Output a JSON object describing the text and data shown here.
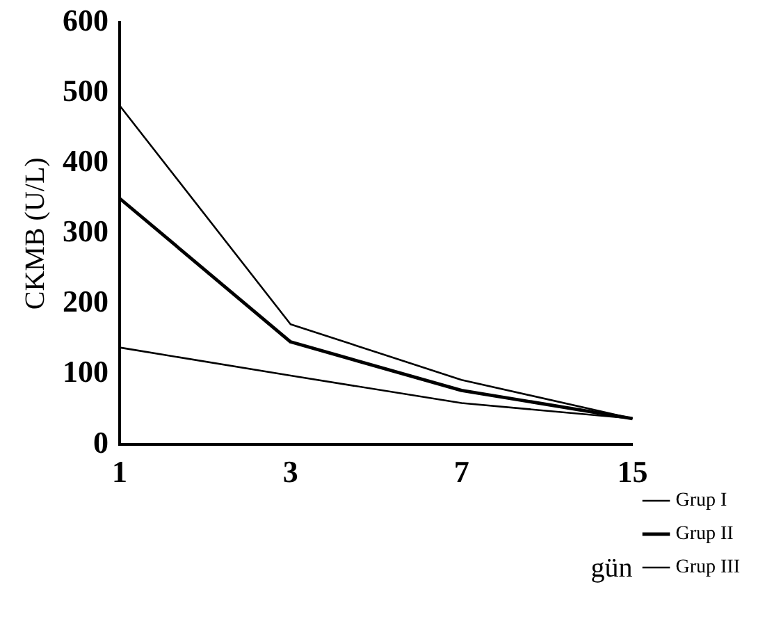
{
  "chart_data": {
    "type": "line",
    "ylabel": "CKMB (U/L)",
    "xlabel": "gün",
    "categories": [
      "1",
      "3",
      "7",
      "15"
    ],
    "series": [
      {
        "name": "Grup I",
        "color": "#000000",
        "values": [
          482,
          171,
          92,
          37
        ]
      },
      {
        "name": "Grup II",
        "color": "#000000",
        "values": [
          350,
          146,
          77,
          37
        ]
      },
      {
        "name": "Grup III",
        "color": "#000000",
        "values": [
          138,
          98,
          59,
          37
        ]
      }
    ],
    "ylim": [
      0,
      600
    ],
    "yticks": [
      0,
      100,
      200,
      300,
      400,
      500,
      600
    ],
    "grid": false,
    "legend": "right",
    "marker": "none",
    "line_style": "solid"
  }
}
